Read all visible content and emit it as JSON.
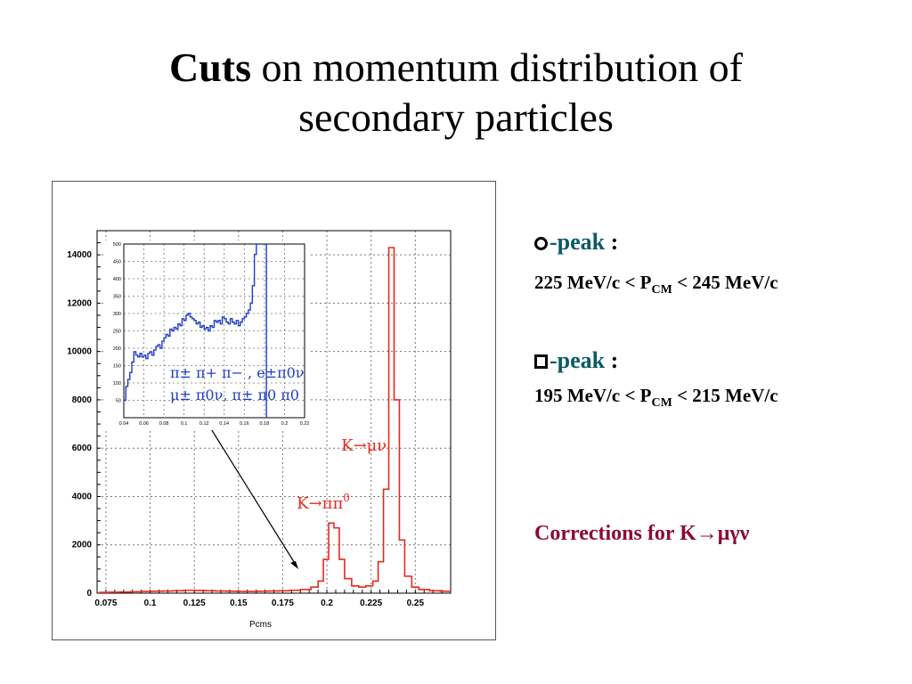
{
  "title": {
    "bold": "Cuts",
    "line1_rest": " on momentum distribution of",
    "line2": "secondary particles"
  },
  "notes": {
    "peak1": {
      "name": "-peak",
      "colon": " :",
      "range_left": "225 MeV/c < P",
      "sub": "CM",
      "range_right": " < 245 MeV/c"
    },
    "peak2": {
      "name": "-peak",
      "colon": " :",
      "range_left": "195 MeV/c < P",
      "sub": "CM",
      "range_right": " < 215 MeV/c"
    },
    "corrections": "Corrections for K→μγν"
  },
  "chart_data": [
    {
      "type": "histogram",
      "xlabel": "Pcms",
      "xlim": [
        0.07,
        0.27
      ],
      "ylim": [
        0,
        15000
      ],
      "x_ticks": [
        "0.075",
        "0.1",
        "0.125",
        "0.15",
        "0.175",
        "0.2",
        "0.225",
        "0.25"
      ],
      "y_ticks": [
        "0",
        "2000",
        "4000",
        "6000",
        "8000",
        "10000",
        "12000",
        "14000"
      ],
      "grid": true,
      "line_color": "#e8281e",
      "bins": [
        [
          0.071,
          30
        ],
        [
          0.077,
          40
        ],
        [
          0.083,
          50
        ],
        [
          0.089,
          60
        ],
        [
          0.095,
          70
        ],
        [
          0.101,
          80
        ],
        [
          0.107,
          90
        ],
        [
          0.113,
          100
        ],
        [
          0.119,
          120
        ],
        [
          0.125,
          110
        ],
        [
          0.131,
          100
        ],
        [
          0.137,
          90
        ],
        [
          0.143,
          80
        ],
        [
          0.149,
          70
        ],
        [
          0.155,
          70
        ],
        [
          0.161,
          80
        ],
        [
          0.167,
          90
        ],
        [
          0.173,
          100
        ],
        [
          0.179,
          120
        ],
        [
          0.185,
          150
        ],
        [
          0.191,
          250
        ],
        [
          0.195,
          500
        ],
        [
          0.198,
          1400
        ],
        [
          0.201,
          2900
        ],
        [
          0.204,
          2700
        ],
        [
          0.207,
          1400
        ],
        [
          0.21,
          600
        ],
        [
          0.214,
          300
        ],
        [
          0.218,
          250
        ],
        [
          0.222,
          300
        ],
        [
          0.226,
          500
        ],
        [
          0.229,
          1300
        ],
        [
          0.232,
          4300
        ],
        [
          0.235,
          14300
        ],
        [
          0.238,
          8000
        ],
        [
          0.241,
          2200
        ],
        [
          0.244,
          700
        ],
        [
          0.248,
          250
        ],
        [
          0.252,
          150
        ],
        [
          0.258,
          100
        ],
        [
          0.264,
          80
        ]
      ],
      "annotations": [
        {
          "text": "K→μν",
          "x": 0.225,
          "y": 5900,
          "color": "#e8281e"
        },
        {
          "text": "K→ππ",
          "sup": "0",
          "x": 0.203,
          "y": 3500,
          "color": "#e8281e"
        }
      ]
    },
    {
      "type": "histogram",
      "role": "inset",
      "xlim": [
        0.04,
        0.22
      ],
      "ylim": [
        0,
        500
      ],
      "x_ticks": [
        "0.04",
        "0.06",
        "0.08",
        "0.1",
        "0.12",
        "0.14",
        "0.16",
        "0.18",
        "0.2",
        "0.22"
      ],
      "y_ticks": [
        "50",
        "100",
        "150",
        "200",
        "250",
        "300",
        "350",
        "400",
        "450",
        "500"
      ],
      "grid": true,
      "line_color": "#1e3cc8",
      "bins": [
        [
          0.04,
          50
        ],
        [
          0.042,
          90
        ],
        [
          0.044,
          110
        ],
        [
          0.046,
          130
        ],
        [
          0.048,
          160
        ],
        [
          0.05,
          190
        ],
        [
          0.052,
          180
        ],
        [
          0.054,
          175
        ],
        [
          0.056,
          185
        ],
        [
          0.058,
          175
        ],
        [
          0.06,
          180
        ],
        [
          0.062,
          170
        ],
        [
          0.064,
          185
        ],
        [
          0.066,
          190
        ],
        [
          0.068,
          180
        ],
        [
          0.07,
          195
        ],
        [
          0.072,
          205
        ],
        [
          0.074,
          210
        ],
        [
          0.076,
          200
        ],
        [
          0.078,
          220
        ],
        [
          0.08,
          230
        ],
        [
          0.082,
          240
        ],
        [
          0.084,
          235
        ],
        [
          0.086,
          255
        ],
        [
          0.088,
          250
        ],
        [
          0.09,
          260
        ],
        [
          0.092,
          255
        ],
        [
          0.094,
          270
        ],
        [
          0.096,
          265
        ],
        [
          0.098,
          285
        ],
        [
          0.1,
          280
        ],
        [
          0.102,
          295
        ],
        [
          0.104,
          300
        ],
        [
          0.106,
          290
        ],
        [
          0.108,
          285
        ],
        [
          0.11,
          280
        ],
        [
          0.112,
          270
        ],
        [
          0.114,
          275
        ],
        [
          0.116,
          260
        ],
        [
          0.118,
          265
        ],
        [
          0.12,
          255
        ],
        [
          0.122,
          260
        ],
        [
          0.124,
          250
        ],
        [
          0.126,
          265
        ],
        [
          0.128,
          260
        ],
        [
          0.13,
          280
        ],
        [
          0.132,
          275
        ],
        [
          0.134,
          280
        ],
        [
          0.136,
          270
        ],
        [
          0.138,
          290
        ],
        [
          0.14,
          285
        ],
        [
          0.142,
          275
        ],
        [
          0.144,
          270
        ],
        [
          0.146,
          285
        ],
        [
          0.148,
          275
        ],
        [
          0.15,
          270
        ],
        [
          0.152,
          280
        ],
        [
          0.154,
          265
        ],
        [
          0.156,
          275
        ],
        [
          0.158,
          285
        ],
        [
          0.16,
          290
        ],
        [
          0.162,
          300
        ],
        [
          0.164,
          310
        ],
        [
          0.166,
          330
        ],
        [
          0.168,
          380
        ],
        [
          0.17,
          470
        ],
        [
          0.172,
          500
        ],
        [
          0.174,
          500
        ],
        [
          0.176,
          500
        ],
        [
          0.178,
          500
        ],
        [
          0.18,
          500
        ]
      ],
      "label_line1": "π± π+ π− , e±π0ν",
      "label_line2": "μ± π0ν, π± π0 π0"
    }
  ]
}
